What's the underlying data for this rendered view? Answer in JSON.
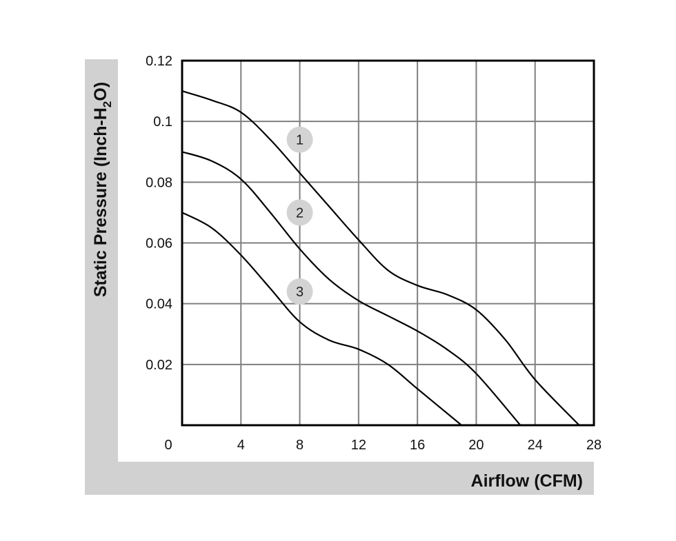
{
  "chart_data": {
    "type": "line",
    "xlabel": "Airflow (CFM)",
    "ylabel": {
      "main": "Static Pressure (Inch-H",
      "subscript": "2",
      "end": "O)"
    },
    "xlim": [
      0,
      28
    ],
    "ylim": [
      0,
      0.12
    ],
    "x_ticks": [
      "0",
      "4",
      "8",
      "12",
      "16",
      "20",
      "24",
      "28"
    ],
    "y_ticks": [
      "0.02",
      "0.04",
      "0.06",
      "0.08",
      "0.1",
      "0.12"
    ],
    "grid": true,
    "series": [
      {
        "name": "1",
        "x": [
          0,
          2,
          4,
          6,
          8,
          10,
          12,
          14,
          16,
          18,
          20,
          22,
          24,
          27
        ],
        "y": [
          0.11,
          0.107,
          0.103,
          0.094,
          0.083,
          0.072,
          0.061,
          0.051,
          0.046,
          0.043,
          0.038,
          0.028,
          0.015,
          0.0
        ]
      },
      {
        "name": "2",
        "x": [
          0,
          2,
          4,
          6,
          8,
          10,
          12,
          14,
          16,
          18,
          20,
          23
        ],
        "y": [
          0.09,
          0.087,
          0.081,
          0.07,
          0.058,
          0.048,
          0.041,
          0.036,
          0.031,
          0.025,
          0.017,
          0.0
        ]
      },
      {
        "name": "3",
        "x": [
          0,
          2,
          4,
          6,
          8,
          10,
          12,
          14,
          16,
          19
        ],
        "y": [
          0.07,
          0.065,
          0.056,
          0.045,
          0.034,
          0.028,
          0.025,
          0.02,
          0.012,
          0.0
        ]
      }
    ],
    "markers": [
      {
        "label": "1",
        "x": 8,
        "y": 0.094
      },
      {
        "label": "2",
        "x": 8,
        "y": 0.07
      },
      {
        "label": "3",
        "x": 8,
        "y": 0.044
      }
    ],
    "colors": {
      "frame_band": "#d1d1d1",
      "grid": "#7f7f7f",
      "line": "#000000",
      "marker_fill": "#d3d3d3"
    }
  }
}
